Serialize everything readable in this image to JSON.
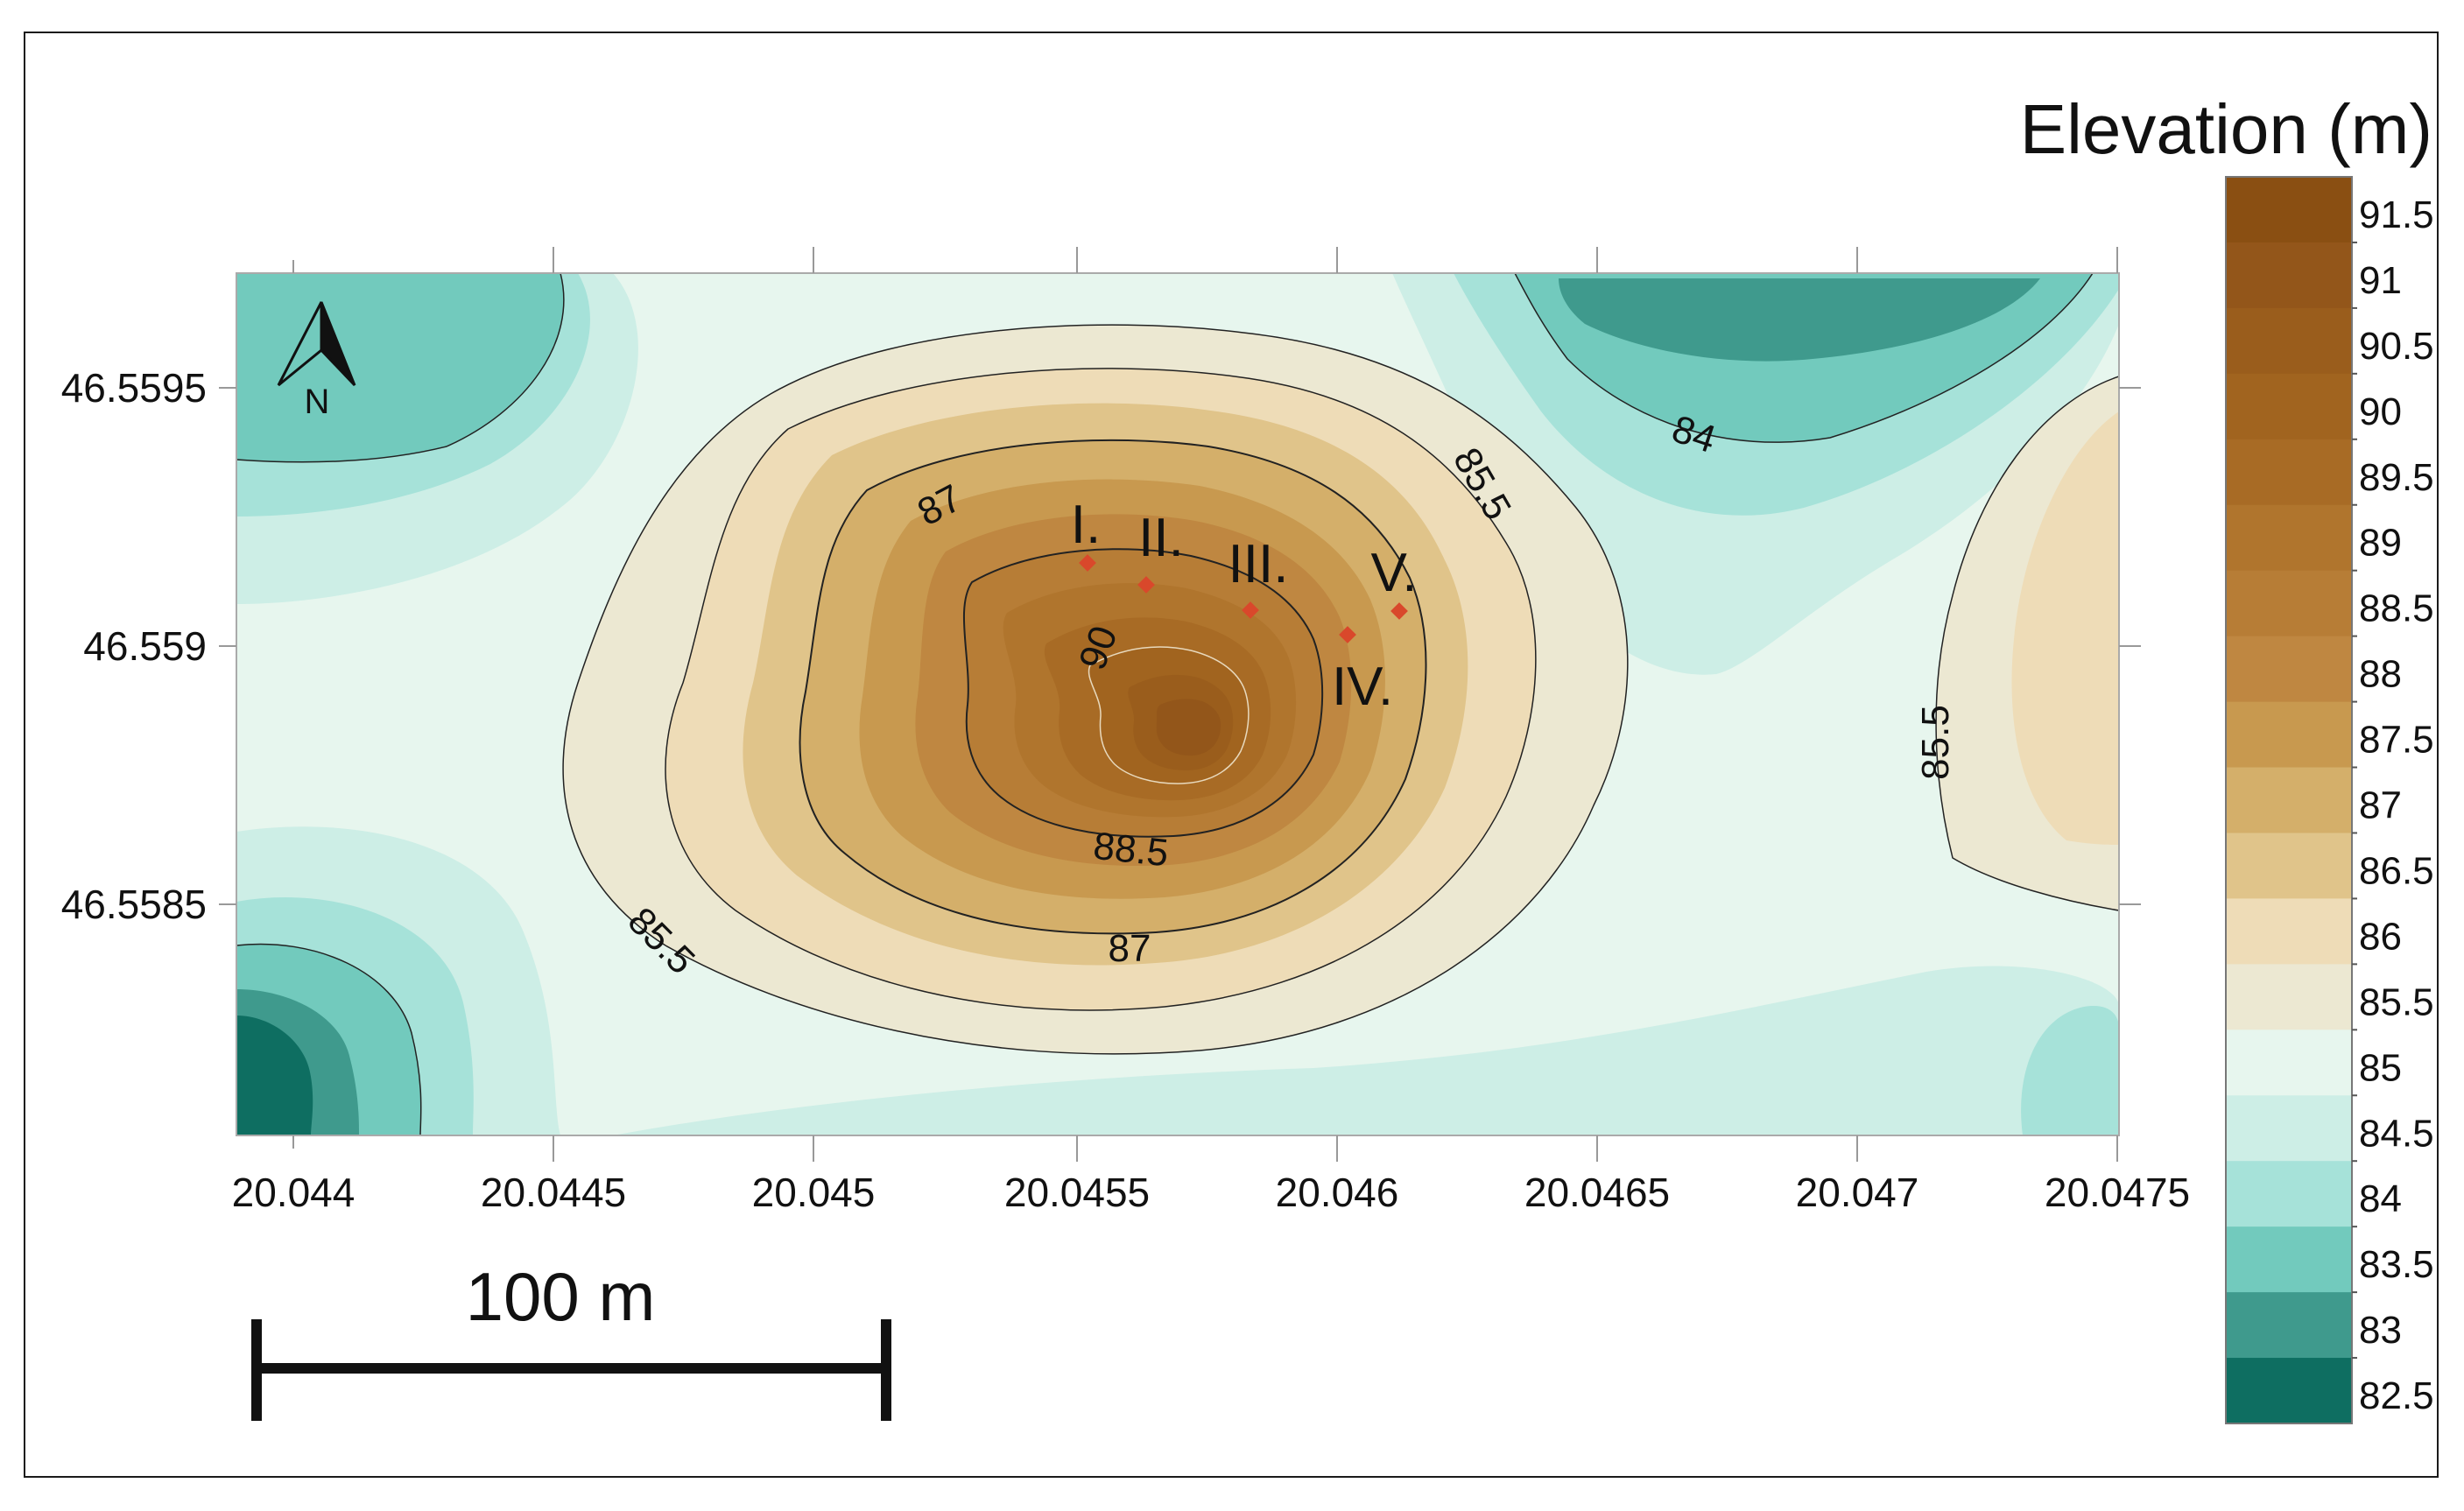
{
  "legend": {
    "title": "Elevation (m)",
    "labels": [
      "91.5",
      "91",
      "90.5",
      "90",
      "89.5",
      "89",
      "88.5",
      "88",
      "87.5",
      "87",
      "86.5",
      "86",
      "85.5",
      "85",
      "84.5",
      "84",
      "83.5",
      "83",
      "82.5"
    ],
    "colors": [
      "#8a4f12",
      "#93561a",
      "#9a5d1c",
      "#a1641f",
      "#a86b25",
      "#b0752d",
      "#b77d36",
      "#bf8741",
      "#c8994f",
      "#d4af6a",
      "#e0c48a",
      "#eedcb7",
      "#ece8d2",
      "#e7f6ee",
      "#cdeee6",
      "#a6e2d9",
      "#72cabd",
      "#3f9a8d",
      "#0e6e61"
    ]
  },
  "axes": {
    "x_ticks": [
      "20.044",
      "20.0445",
      "20.045",
      "20.0455",
      "20.046",
      "20.0465",
      "20.047",
      "20.0475"
    ],
    "y_ticks": [
      "46.5595",
      "46.559",
      "46.5585"
    ]
  },
  "contour_labels": [
    "87",
    "90",
    "88.5",
    "87",
    "85.5",
    "85.5",
    "84",
    "85.5"
  ],
  "sites": [
    "I.",
    "II.",
    "III.",
    "IV.",
    "V."
  ],
  "north_arrow": {
    "label": "N"
  },
  "scale_bar": {
    "label": "100 m"
  },
  "colors": {
    "background": "#e6f5ee",
    "site_marker": "#d9482b",
    "frame": "#1a1a1a"
  }
}
